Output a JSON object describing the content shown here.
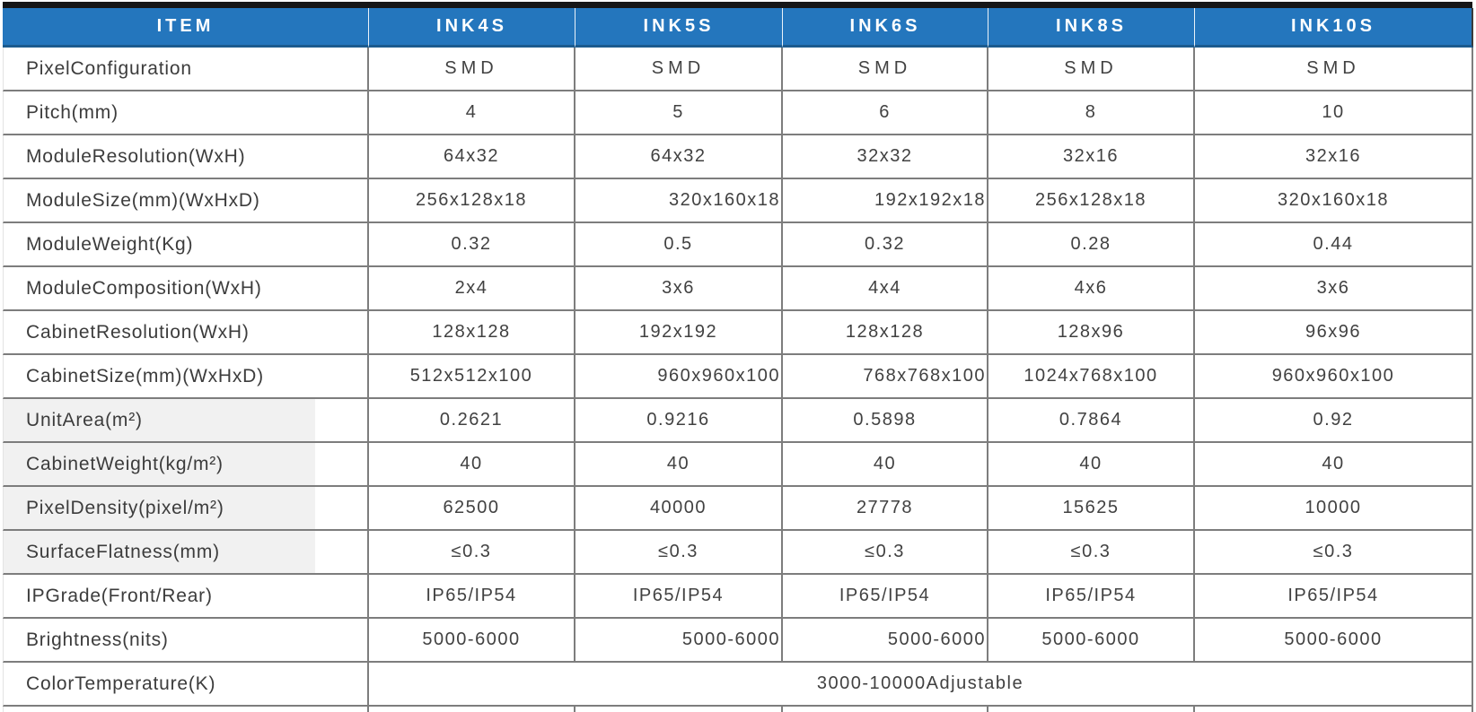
{
  "colors": {
    "header_blue": "#2476BD",
    "header_text": "#FFFFFF",
    "body_text": "#414141",
    "border_gray": "#7D7D7D",
    "shaded_label_bg": "#F1F1F1",
    "top_bar_black": "#161616"
  },
  "table": {
    "item_header": "ITEM",
    "columns": [
      "INK4S",
      "INK5S",
      "INK6S",
      "INK8S",
      "INK10S"
    ],
    "rows": [
      {
        "label": "PixelConfiguration",
        "values": [
          "SMD",
          "SMD",
          "SMD",
          "SMD",
          "SMD"
        ],
        "wide_spacing": true
      },
      {
        "label": "Pitch(mm)",
        "values": [
          "4",
          "5",
          "6",
          "8",
          "10"
        ]
      },
      {
        "label": "ModuleResolution(WxH)",
        "values": [
          "64x32",
          "64x32",
          "32x32",
          "32x16",
          "32x16"
        ]
      },
      {
        "label": "ModuleSize(mm)(WxHxD)",
        "values": [
          "256x128x18",
          "320x160x18",
          "192x192x18",
          "256x128x18",
          "320x160x18"
        ],
        "align": [
          "center",
          "right",
          "right",
          "center",
          "center"
        ]
      },
      {
        "label": "ModuleWeight(Kg)",
        "values": [
          "0.32",
          "0.5",
          "0.32",
          "0.28",
          "0.44"
        ]
      },
      {
        "label": "ModuleComposition(WxH)",
        "values": [
          "2x4",
          "3x6",
          "4x4",
          "4x6",
          "3x6"
        ]
      },
      {
        "label": "CabinetResolution(WxH)",
        "values": [
          "128x128",
          "192x192",
          "128x128",
          "128x96",
          "96x96"
        ]
      },
      {
        "label": "CabinetSize(mm)(WxHxD)",
        "values": [
          "512x512x100",
          "960x960x100",
          "768x768x100",
          "1024x768x100",
          "960x960x100"
        ],
        "align": [
          "center",
          "right",
          "right",
          "center",
          "center"
        ]
      },
      {
        "label": "UnitArea(m²)",
        "values": [
          "0.2621",
          "0.9216",
          "0.5898",
          "0.7864",
          "0.92"
        ],
        "shaded": true
      },
      {
        "label": "CabinetWeight(kg/m²)",
        "values": [
          "40",
          "40",
          "40",
          "40",
          "40"
        ],
        "shaded": true
      },
      {
        "label": "PixelDensity(pixel/m²)",
        "values": [
          "62500",
          "40000",
          "27778",
          "15625",
          "10000"
        ],
        "shaded": true
      },
      {
        "label": "SurfaceFlatness(mm)",
        "values": [
          "≤0.3",
          "≤0.3",
          "≤0.3",
          "≤0.3",
          "≤0.3"
        ],
        "shaded": true
      },
      {
        "label": "IPGrade(Front/Rear)",
        "values": [
          "IP65/IP54",
          "IP65/IP54",
          "IP65/IP54",
          "IP65/IP54",
          "IP65/IP54"
        ]
      },
      {
        "label": "Brightness(nits)",
        "values": [
          "5000-6000",
          "5000-6000",
          "5000-6000",
          "5000-6000",
          "5000-6000"
        ],
        "align": [
          "center",
          "right",
          "right",
          "center",
          "center"
        ]
      },
      {
        "label": "ColorTemperature(K)",
        "merged_value": "3000-10000Adjustable"
      }
    ]
  }
}
